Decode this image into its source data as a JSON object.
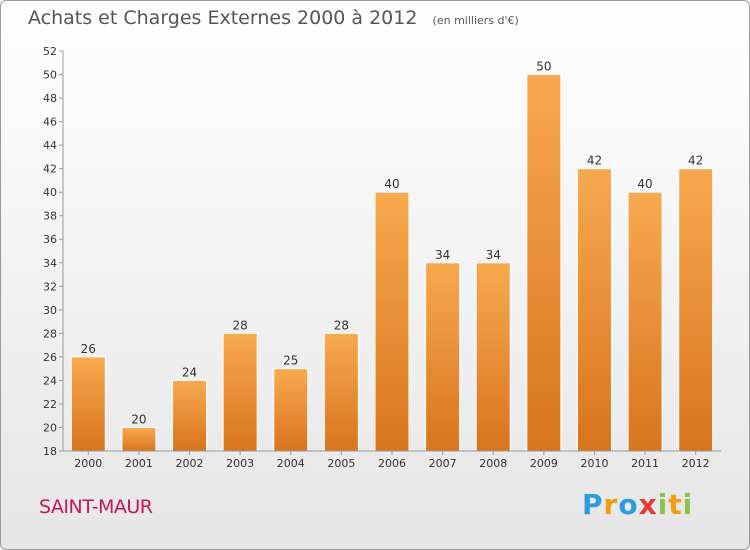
{
  "header": {
    "title": "Achats et Charges Externes 2000 à 2012",
    "unit": "(en milliers d'€)"
  },
  "footer": {
    "city": "SAINT-MAUR",
    "logo": {
      "letters": [
        "P",
        "r",
        "o",
        "x",
        "i",
        "t",
        "i"
      ],
      "colors": [
        "#2e9be0",
        "#f39c12",
        "#2e9be0",
        "#e53935",
        "#8bc34a",
        "#f39c12",
        "#8bc34a"
      ]
    }
  },
  "chart_data": {
    "type": "bar",
    "title": "Achats et Charges Externes 2000 à 2012",
    "categories": [
      "2000",
      "2001",
      "2002",
      "2003",
      "2004",
      "2005",
      "2006",
      "2007",
      "2008",
      "2009",
      "2010",
      "2011",
      "2012"
    ],
    "values": [
      26,
      20,
      24,
      28,
      25,
      28,
      40,
      34,
      34,
      50,
      42,
      40,
      42
    ],
    "ylim": [
      18,
      52
    ],
    "yticks": [
      18,
      20,
      22,
      24,
      26,
      28,
      30,
      32,
      34,
      36,
      38,
      40,
      42,
      44,
      46,
      48,
      50,
      52
    ],
    "grid": false,
    "colors": {
      "bar_top": "#f7a94f",
      "bar_bottom": "#d8741e",
      "axis": "#999999"
    }
  }
}
